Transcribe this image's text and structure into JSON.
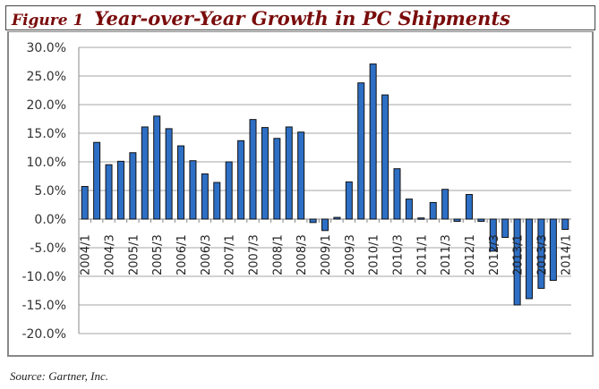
{
  "header": {
    "figure": "Figure 1",
    "title": "Year-over-Year Growth in PC Shipments"
  },
  "source": "Source: Gartner, Inc.",
  "chart_data": {
    "type": "bar",
    "title": "Year-over-Year Growth in PC Shipments",
    "xlabel": "",
    "ylabel": "",
    "ylim": [
      -20,
      30
    ],
    "yticks": [
      "30.0%",
      "25.0%",
      "20.0%",
      "15.0%",
      "10.0%",
      "5.0%",
      "0.0%",
      "-5.0%",
      "-10.0%",
      "-15.0%",
      "-20.0%"
    ],
    "grid": true,
    "bar_color": "#2e6fc6",
    "categories": [
      "2004/1",
      "2004/2",
      "2004/3",
      "2004/4",
      "2005/1",
      "2005/2",
      "2005/3",
      "2005/4",
      "2006/1",
      "2006/2",
      "2006/3",
      "2006/4",
      "2007/1",
      "2007/2",
      "2007/3",
      "2007/4",
      "2008/1",
      "2008/2",
      "2008/3",
      "2008/4",
      "2009/1",
      "2009/2",
      "2009/3",
      "2009/4",
      "2010/1",
      "2010/2",
      "2010/3",
      "2010/4",
      "2011/1",
      "2011/2",
      "2011/3",
      "2011/4",
      "2012/1",
      "2012/2",
      "2012/3",
      "2012/4",
      "2013/1",
      "2013/2",
      "2013/3",
      "2013/4",
      "2014/1"
    ],
    "tick_labels": [
      "2004/1",
      "2004/3",
      "2005/1",
      "2005/3",
      "2006/1",
      "2006/3",
      "2007/1",
      "2007/3",
      "2008/1",
      "2008/3",
      "2009/1",
      "2009/3",
      "2010/1",
      "2010/3",
      "2011/1",
      "2011/3",
      "2012/1",
      "2012/3",
      "2013/1",
      "2013/3",
      "2014/1"
    ],
    "values": [
      5.7,
      13.4,
      9.5,
      10.1,
      11.6,
      16.1,
      18.0,
      15.8,
      12.8,
      10.2,
      7.9,
      6.4,
      10.0,
      13.7,
      17.4,
      16.0,
      14.1,
      16.1,
      15.2,
      -0.6,
      -2.0,
      0.3,
      6.5,
      23.8,
      27.1,
      21.7,
      8.8,
      3.5,
      0.2,
      2.9,
      5.2,
      -0.4,
      4.3,
      -0.4,
      -5.6,
      -3.2,
      -15.0,
      -13.9,
      -12.1,
      -10.7,
      -1.8
    ]
  }
}
